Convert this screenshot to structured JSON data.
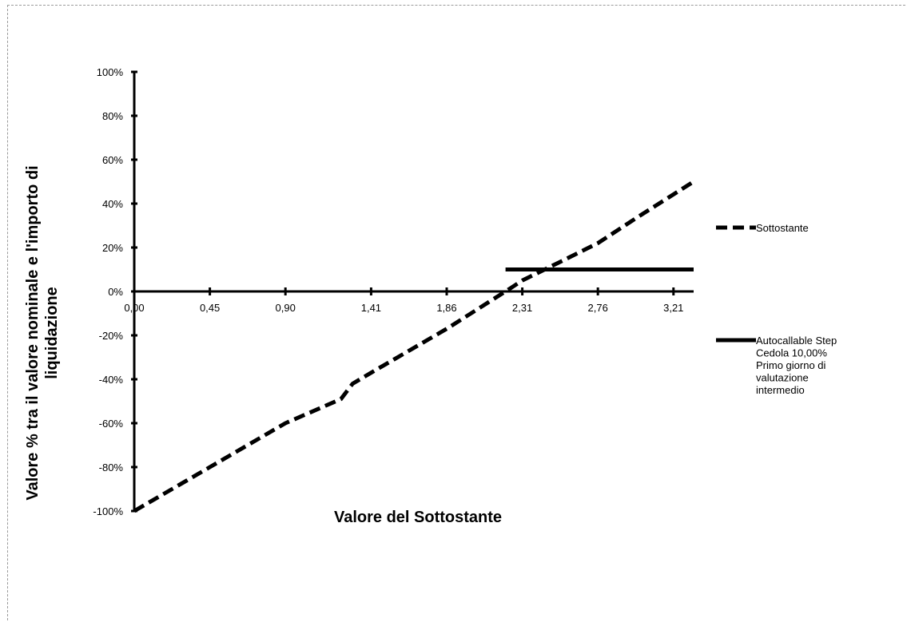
{
  "chart_data": {
    "type": "line",
    "xlabel": "Valore del Sottostante",
    "ylabel_lines": [
      "Valore % tra il valore nominale e l'importo di",
      "liquidazione"
    ],
    "x_tick_labels": [
      "0,00",
      "0,45",
      "0,90",
      "1,41",
      "1,86",
      "2,31",
      "2,76",
      "3,21"
    ],
    "x_tick_values": [
      0.0,
      0.45,
      0.9,
      1.41,
      1.86,
      2.31,
      2.76,
      3.21
    ],
    "xlim": [
      0,
      3.33
    ],
    "y_tick_labels": [
      "100%",
      "80%",
      "60%",
      "40%",
      "20%",
      "0%",
      "-20%",
      "-40%",
      "-60%",
      "-80%",
      "-100%"
    ],
    "y_tick_values": [
      100,
      80,
      60,
      40,
      20,
      0,
      -20,
      -40,
      -60,
      -80,
      -100
    ],
    "ylim": [
      -100,
      100
    ],
    "series": [
      {
        "name": "Sottostante",
        "style": "dashed",
        "color": "#000000",
        "x": [
          0.0,
          0.45,
          0.9,
          1.23,
          1.3,
          1.41,
          1.86,
          2.21,
          2.31,
          2.55,
          2.76,
          3.0,
          3.33
        ],
        "y": [
          -100,
          -80,
          -60,
          -49,
          -42,
          -37,
          -17,
          0,
          5,
          14,
          22,
          34,
          50
        ]
      },
      {
        "name": "Autocallable Step",
        "style": "solid",
        "color": "#000000",
        "x": [
          2.21,
          3.33
        ],
        "y": [
          10,
          10
        ]
      }
    ],
    "legend_position": "right",
    "legend": [
      {
        "lines": [
          "Sottostante"
        ]
      },
      {
        "lines": [
          "Autocallable Step",
          "Cedola 10,00%",
          "Primo giorno di",
          "valutazione",
          "intermedio"
        ]
      }
    ]
  }
}
